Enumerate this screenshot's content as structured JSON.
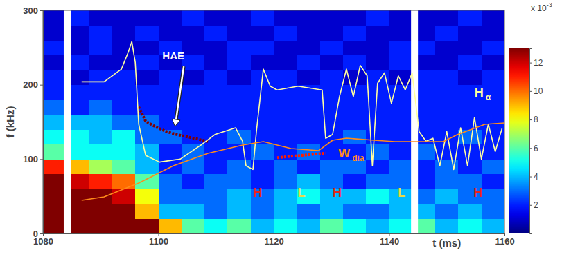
{
  "chart_data": {
    "type": "spectrogram",
    "xlabel": "t (ms)",
    "ylabel": "f (kHz)",
    "xlim": [
      1080,
      1160
    ],
    "ylim": [
      0,
      300
    ],
    "xticks": [
      1080,
      1100,
      1120,
      1140,
      1160
    ],
    "yticks": [
      0,
      100,
      200,
      300
    ],
    "heatmap": {
      "x_edges": [
        1080,
        1084,
        1088,
        1092,
        1096,
        1100,
        1104,
        1108,
        1112,
        1116,
        1120,
        1124,
        1128,
        1132,
        1136,
        1140,
        1144,
        1148,
        1152,
        1156,
        1160
      ],
      "y_edges": [
        0,
        20,
        40,
        60,
        80,
        100,
        120,
        140,
        160,
        180,
        200,
        220,
        240,
        260,
        280,
        300
      ],
      "cells": [
        [
          13,
          13,
          13,
          13,
          13,
          9,
          6,
          5,
          6,
          4,
          5,
          4,
          6,
          5,
          4,
          5,
          6,
          4,
          5,
          4
        ],
        [
          13,
          13,
          13,
          13,
          9,
          4,
          4,
          3,
          4,
          3,
          4,
          3,
          4,
          3,
          3,
          4,
          4,
          3,
          4,
          3
        ],
        [
          13,
          13,
          13,
          12,
          8,
          3,
          3,
          3,
          4,
          3,
          4,
          5,
          4,
          4,
          5,
          4,
          3,
          4,
          3,
          3
        ],
        [
          13,
          12,
          11,
          10,
          6,
          3,
          2,
          3,
          3,
          2,
          3,
          4,
          3,
          2,
          3,
          3,
          2,
          3,
          3,
          2
        ],
        [
          11,
          9,
          7,
          6,
          4,
          2,
          3,
          2,
          3,
          2,
          3,
          2,
          3,
          3,
          2,
          3,
          2,
          3,
          2,
          3
        ],
        [
          6,
          5,
          5,
          5,
          4,
          2,
          3,
          2,
          2,
          3,
          2,
          3,
          2,
          2,
          3,
          2,
          3,
          2,
          2,
          2
        ],
        [
          5,
          5,
          4,
          5,
          3,
          3,
          2,
          2,
          3,
          2,
          2,
          2,
          2,
          3,
          2,
          2,
          2,
          2,
          3,
          2
        ],
        [
          4,
          4,
          4,
          3,
          3,
          2,
          2,
          2,
          2,
          2,
          2,
          2,
          2,
          2,
          2,
          2,
          2,
          2,
          2,
          2
        ],
        [
          3,
          2,
          3,
          2,
          2,
          2,
          2,
          2,
          2,
          2,
          2,
          2,
          2,
          2,
          2,
          2,
          2,
          2,
          2,
          2
        ],
        [
          2,
          2,
          2,
          2,
          2,
          2,
          2,
          2,
          2,
          2,
          2,
          2,
          2,
          2,
          2,
          2,
          2,
          2,
          2,
          2
        ],
        [
          2,
          1,
          2,
          2,
          1,
          2,
          1,
          2,
          1,
          2,
          2,
          1,
          2,
          1,
          2,
          1,
          2,
          2,
          1,
          2
        ],
        [
          1,
          2,
          1,
          1,
          2,
          1,
          2,
          1,
          2,
          1,
          1,
          2,
          1,
          2,
          1,
          2,
          1,
          1,
          2,
          1
        ],
        [
          2,
          1,
          2,
          1,
          1,
          2,
          1,
          1,
          2,
          2,
          1,
          1,
          2,
          1,
          1,
          2,
          2,
          1,
          1,
          2
        ],
        [
          1,
          1,
          2,
          1,
          2,
          1,
          1,
          2,
          1,
          1,
          2,
          1,
          1,
          2,
          1,
          1,
          1,
          2,
          1,
          1
        ],
        [
          1,
          2,
          1,
          1,
          1,
          1,
          2,
          1,
          1,
          2,
          1,
          1,
          1,
          1,
          2,
          1,
          1,
          1,
          2,
          1
        ]
      ],
      "gaps": [
        [
          1083.6,
          1084.9
        ],
        [
          1143.8,
          1145.0
        ]
      ],
      "ridges": [
        {
          "x": [
            1096.6,
            1097.8,
            1099.6,
            1101.4,
            1103.2,
            1105.0,
            1106.8,
            1108.6
          ],
          "y": [
            170,
            151,
            143,
            137,
            133,
            130,
            127,
            123.5
          ],
          "value": 13
        },
        {
          "x": [
            1120.6,
            1124.8,
            1129.0
          ],
          "y": [
            102,
            105,
            108
          ],
          "value": 11
        }
      ],
      "colorbar": {
        "range": [
          0,
          13
        ],
        "ticks": [
          2,
          4,
          6,
          8,
          10,
          12
        ],
        "multiplier": "x 10",
        "exponent": "-3"
      }
    },
    "series": [
      {
        "name": "H",
        "subscript": "α",
        "color": "#ffffa0",
        "label_x": 1154.8,
        "label_y": 184,
        "x": [
          1086.7,
          1090.6,
          1093.6,
          1094.8,
          1095.4,
          1096.0,
          1096.6,
          1097.8,
          1100.2,
          1103.8,
          1107.4,
          1109.8,
          1113.4,
          1114.6,
          1115.2,
          1116.4,
          1117.0,
          1118.2,
          1119.4,
          1120.6,
          1124.2,
          1128.4,
          1129.0,
          1130.2,
          1131.4,
          1132.6,
          1133.8,
          1135.0,
          1136.2,
          1137.1,
          1138.0,
          1139.2,
          1140.4,
          1141.6,
          1142.8,
          1144.0,
          1145.2,
          1146.4,
          1147.6,
          1148.8,
          1150.0,
          1151.2,
          1152.4,
          1153.6,
          1154.8,
          1156.0,
          1157.2,
          1158.4,
          1159.6
        ],
        "values": [
          204,
          204,
          221,
          244,
          258,
          230,
          147,
          105,
          96,
          100,
          119,
          133,
          142,
          124,
          91,
          86,
          137,
          221,
          198,
          193,
          198,
          193,
          128,
          133,
          184,
          221,
          184,
          226,
          212,
          91,
          202,
          216,
          175,
          212,
          193,
          216,
          137,
          124,
          128,
          91,
          137,
          86,
          142,
          91,
          156,
          100,
          147,
          110,
          142
        ]
      },
      {
        "name": "W",
        "subscript": "dia",
        "color": "#ff8c1a",
        "label_x": 1131.2,
        "label_y": 102,
        "x": [
          1086.7,
          1090.6,
          1096.6,
          1102.6,
          1108.6,
          1114.6,
          1118.2,
          1123.0,
          1127.8,
          1130.2,
          1132.6,
          1137.4,
          1141.0,
          1144.6,
          1149.4,
          1151.8,
          1156.6,
          1160.0
        ],
        "values": [
          44.6,
          49.2,
          67.8,
          91,
          107.7,
          118.9,
          123.5,
          114.2,
          111.5,
          125.4,
          128.2,
          125.4,
          123.5,
          123.5,
          123.5,
          132.8,
          146.7,
          148.6
        ]
      }
    ],
    "annotations": [
      {
        "text": "HAE",
        "x": 1102.6,
        "y": 234,
        "arrow_x": 1102.9,
        "arrow_y": 144,
        "color": "#ffffff"
      },
      {
        "text": "H",
        "x": 1117.2,
        "y": 49,
        "color": "#e8231e"
      },
      {
        "text": "L",
        "x": 1124.8,
        "y": 49,
        "color": "#e8d84a"
      },
      {
        "text": "H",
        "x": 1131.0,
        "y": 49,
        "color": "#e8231e"
      },
      {
        "text": "L",
        "x": 1142.2,
        "y": 49,
        "color": "#e8d84a"
      },
      {
        "text": "H",
        "x": 1155.4,
        "y": 49,
        "color": "#e8231e"
      }
    ]
  }
}
